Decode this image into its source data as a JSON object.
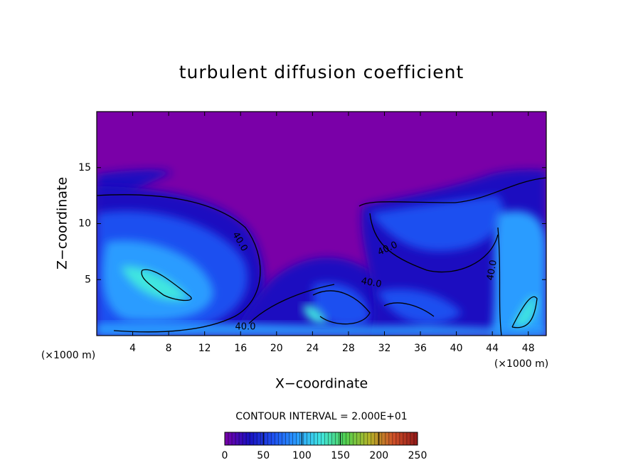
{
  "chart_data": {
    "type": "heatmap",
    "title": "turbulent diffusion coefficient",
    "x_label": "X−coordinate",
    "y_label": "Z−coordinate",
    "x_unit": "(×1000 m)",
    "y_unit": "(×1000 m)",
    "xlim": [
      0,
      50
    ],
    "xticks": [
      4,
      8,
      12,
      16,
      20,
      24,
      28,
      32,
      36,
      40,
      44,
      48
    ],
    "ylim": [
      0,
      20
    ],
    "yticks": [
      5,
      10,
      15
    ],
    "contour_labels": [
      "40.0",
      "40.0",
      "40.0",
      "40.0",
      "40.0"
    ],
    "annotation": "CONTOUR INTERVAL = 2.000E+01",
    "colorbar": {
      "clim": [
        0,
        250
      ],
      "ticks": [
        0,
        50,
        100,
        150,
        200,
        250
      ],
      "colormap": [
        "#7a00a8",
        "#1a10c0",
        "#1e50f0",
        "#2a9cff",
        "#40e6e0",
        "#50d050",
        "#b4b428",
        "#d05028",
        "#901818"
      ]
    }
  }
}
